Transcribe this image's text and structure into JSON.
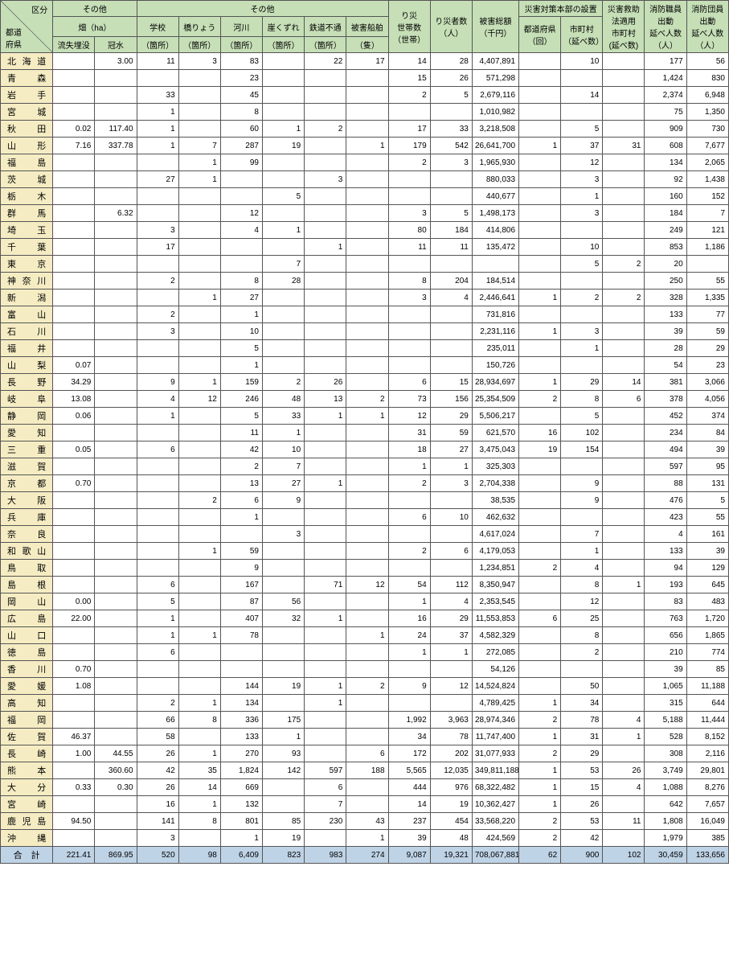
{
  "headers": {
    "corner_top": "区分",
    "corner_bottom": "都道\n府県",
    "group1": "その他",
    "group1_sub": "畑（ha）",
    "group1_cols": [
      "流失埋没",
      "冠水"
    ],
    "group2": "その他",
    "group2_cols": [
      "学校",
      "橋りょう",
      "河川",
      "崖くずれ",
      "鉄道不通",
      "被害船舶"
    ],
    "group2_unit": "（箇所）",
    "group2_unit_ship": "（隻）",
    "col_households": "り災\n世帯数\n（世帯）",
    "col_victims": "り災者数\n（人）",
    "col_damage": "被害総額\n（千円）",
    "group3": "災害対策本部の設置",
    "group3_cols": [
      "都道府県\n（回）",
      "市町村\n（延べ数）"
    ],
    "col_law": "災害救助\n法適用\n市町村\n(延べ数)",
    "col_staff": "消防職員\n出動\n延べ人数\n（人）",
    "col_corps": "消防団員\n出動\n延べ人数\n（人）"
  },
  "groups": [
    [
      {
        "p": "北海道",
        "v": [
          "",
          "3.00",
          "11",
          "3",
          "83",
          "",
          "22",
          "17",
          "14",
          "28",
          "4,407,891",
          "",
          "10",
          "",
          "177",
          "56"
        ]
      },
      {
        "p": "青森",
        "v": [
          "",
          "",
          "",
          "",
          "23",
          "",
          "",
          "",
          "15",
          "26",
          "571,298",
          "",
          "",
          "",
          "1,424",
          "830"
        ]
      },
      {
        "p": "岩手",
        "v": [
          "",
          "",
          "33",
          "",
          "45",
          "",
          "",
          "",
          "2",
          "5",
          "2,679,116",
          "",
          "14",
          "",
          "2,374",
          "6,948"
        ]
      },
      {
        "p": "宮城",
        "v": [
          "",
          "",
          "1",
          "",
          "8",
          "",
          "",
          "",
          "",
          "",
          "1,010,982",
          "",
          "",
          "",
          "75",
          "1,350"
        ]
      },
      {
        "p": "秋田",
        "v": [
          "0.02",
          "117.40",
          "1",
          "",
          "60",
          "1",
          "2",
          "",
          "17",
          "33",
          "3,218,508",
          "",
          "5",
          "",
          "909",
          "730"
        ]
      },
      {
        "p": "山形",
        "v": [
          "7.16",
          "337.78",
          "1",
          "7",
          "287",
          "19",
          "",
          "1",
          "179",
          "542",
          "26,641,700",
          "1",
          "37",
          "31",
          "608",
          "7,677"
        ]
      },
      {
        "p": "福島",
        "v": [
          "",
          "",
          "",
          "1",
          "99",
          "",
          "",
          "",
          "2",
          "3",
          "1,965,930",
          "",
          "12",
          "",
          "134",
          "2,065"
        ]
      }
    ],
    [
      {
        "p": "茨城",
        "v": [
          "",
          "",
          "27",
          "1",
          "",
          "",
          "3",
          "",
          "",
          "",
          "880,033",
          "",
          "3",
          "",
          "92",
          "1,438"
        ]
      },
      {
        "p": "栃木",
        "v": [
          "",
          "",
          "",
          "",
          "",
          "5",
          "",
          "",
          "",
          "",
          "440,677",
          "",
          "1",
          "",
          "160",
          "152"
        ]
      },
      {
        "p": "群馬",
        "v": [
          "",
          "6.32",
          "",
          "",
          "12",
          "",
          "",
          "",
          "3",
          "5",
          "1,498,173",
          "",
          "3",
          "",
          "184",
          "7"
        ]
      },
      {
        "p": "埼玉",
        "v": [
          "",
          "",
          "3",
          "",
          "4",
          "1",
          "",
          "",
          "80",
          "184",
          "414,806",
          "",
          "",
          "",
          "249",
          "121"
        ]
      },
      {
        "p": "千葉",
        "v": [
          "",
          "",
          "17",
          "",
          "",
          "",
          "1",
          "",
          "11",
          "11",
          "135,472",
          "",
          "10",
          "",
          "853",
          "1,186"
        ]
      },
      {
        "p": "東京",
        "v": [
          "",
          "",
          "",
          "",
          "",
          "7",
          "",
          "",
          "",
          "",
          "",
          "",
          "5",
          "2",
          "20",
          ""
        ]
      },
      {
        "p": "神奈川",
        "v": [
          "",
          "",
          "2",
          "",
          "8",
          "28",
          "",
          "",
          "8",
          "204",
          "184,514",
          "",
          "",
          "",
          "250",
          "55"
        ]
      }
    ],
    [
      {
        "p": "新潟",
        "v": [
          "",
          "",
          "",
          "1",
          "27",
          "",
          "",
          "",
          "3",
          "4",
          "2,446,641",
          "1",
          "2",
          "2",
          "328",
          "1,335"
        ]
      },
      {
        "p": "富山",
        "v": [
          "",
          "",
          "2",
          "",
          "1",
          "",
          "",
          "",
          "",
          "",
          "731,816",
          "",
          "",
          "",
          "133",
          "77"
        ]
      },
      {
        "p": "石川",
        "v": [
          "",
          "",
          "3",
          "",
          "10",
          "",
          "",
          "",
          "",
          "",
          "2,231,116",
          "1",
          "3",
          "",
          "39",
          "59"
        ]
      },
      {
        "p": "福井",
        "v": [
          "",
          "",
          "",
          "",
          "5",
          "",
          "",
          "",
          "",
          "",
          "235,011",
          "",
          "1",
          "",
          "28",
          "29"
        ]
      }
    ],
    [
      {
        "p": "山梨",
        "v": [
          "0.07",
          "",
          "",
          "",
          "1",
          "",
          "",
          "",
          "",
          "",
          "150,726",
          "",
          "",
          "",
          "54",
          "23"
        ]
      },
      {
        "p": "長野",
        "v": [
          "34.29",
          "",
          "9",
          "1",
          "159",
          "2",
          "26",
          "",
          "6",
          "15",
          "28,934,697",
          "1",
          "29",
          "14",
          "381",
          "3,066"
        ]
      },
      {
        "p": "岐阜",
        "v": [
          "13.08",
          "",
          "4",
          "12",
          "246",
          "48",
          "13",
          "2",
          "73",
          "156",
          "25,354,509",
          "2",
          "8",
          "6",
          "378",
          "4,056"
        ]
      },
      {
        "p": "静岡",
        "v": [
          "0.06",
          "",
          "1",
          "",
          "5",
          "33",
          "1",
          "1",
          "12",
          "29",
          "5,506,217",
          "",
          "5",
          "",
          "452",
          "374"
        ]
      },
      {
        "p": "愛知",
        "v": [
          "",
          "",
          "",
          "",
          "11",
          "1",
          "",
          "",
          "31",
          "59",
          "621,570",
          "16",
          "102",
          "",
          "234",
          "84"
        ]
      },
      {
        "p": "三重",
        "v": [
          "0.05",
          "",
          "6",
          "",
          "42",
          "10",
          "",
          "",
          "18",
          "27",
          "3,475,043",
          "19",
          "154",
          "",
          "494",
          "39"
        ]
      }
    ],
    [
      {
        "p": "滋賀",
        "v": [
          "",
          "",
          "",
          "",
          "2",
          "7",
          "",
          "",
          "1",
          "1",
          "325,303",
          "",
          "",
          "",
          "597",
          "95"
        ]
      },
      {
        "p": "京都",
        "v": [
          "0.70",
          "",
          "",
          "",
          "13",
          "27",
          "1",
          "",
          "2",
          "3",
          "2,704,338",
          "",
          "9",
          "",
          "88",
          "131"
        ]
      },
      {
        "p": "大阪",
        "v": [
          "",
          "",
          "",
          "2",
          "6",
          "9",
          "",
          "",
          "",
          "",
          "38,535",
          "",
          "9",
          "",
          "476",
          "5"
        ]
      },
      {
        "p": "兵庫",
        "v": [
          "",
          "",
          "",
          "",
          "1",
          "",
          "",
          "",
          "6",
          "10",
          "462,632",
          "",
          "",
          "",
          "423",
          "55"
        ]
      },
      {
        "p": "奈良",
        "v": [
          "",
          "",
          "",
          "",
          "",
          "3",
          "",
          "",
          "",
          "",
          "4,617,024",
          "",
          "7",
          "",
          "4",
          "161"
        ]
      },
      {
        "p": "和歌山",
        "v": [
          "",
          "",
          "",
          "1",
          "59",
          "",
          "",
          "",
          "2",
          "6",
          "4,179,053",
          "",
          "1",
          "",
          "133",
          "39"
        ]
      }
    ],
    [
      {
        "p": "鳥取",
        "v": [
          "",
          "",
          "",
          "",
          "9",
          "",
          "",
          "",
          "",
          "",
          "1,234,851",
          "2",
          "4",
          "",
          "94",
          "129"
        ]
      },
      {
        "p": "島根",
        "v": [
          "",
          "",
          "6",
          "",
          "167",
          "",
          "71",
          "12",
          "54",
          "112",
          "8,350,947",
          "",
          "8",
          "1",
          "193",
          "645"
        ]
      },
      {
        "p": "岡山",
        "v": [
          "0.00",
          "",
          "5",
          "",
          "87",
          "56",
          "",
          "",
          "1",
          "4",
          "2,353,545",
          "",
          "12",
          "",
          "83",
          "483"
        ]
      },
      {
        "p": "広島",
        "v": [
          "22.00",
          "",
          "1",
          "",
          "407",
          "32",
          "1",
          "",
          "16",
          "29",
          "11,553,853",
          "6",
          "25",
          "",
          "763",
          "1,720"
        ]
      },
      {
        "p": "山口",
        "v": [
          "",
          "",
          "1",
          "1",
          "78",
          "",
          "",
          "1",
          "24",
          "37",
          "4,582,329",
          "",
          "8",
          "",
          "656",
          "1,865"
        ]
      }
    ],
    [
      {
        "p": "徳島",
        "v": [
          "",
          "",
          "6",
          "",
          "",
          "",
          "",
          "",
          "1",
          "1",
          "272,085",
          "",
          "2",
          "",
          "210",
          "774"
        ]
      },
      {
        "p": "香川",
        "v": [
          "0.70",
          "",
          "",
          "",
          "",
          "",
          "",
          "",
          "",
          "",
          "54,126",
          "",
          "",
          "",
          "39",
          "85"
        ]
      },
      {
        "p": "愛媛",
        "v": [
          "1.08",
          "",
          "",
          "",
          "144",
          "19",
          "1",
          "2",
          "9",
          "12",
          "14,524,824",
          "",
          "50",
          "",
          "1,065",
          "11,188"
        ]
      },
      {
        "p": "高知",
        "v": [
          "",
          "",
          "2",
          "1",
          "134",
          "",
          "1",
          "",
          "",
          "",
          "4,789,425",
          "1",
          "34",
          "",
          "315",
          "644"
        ]
      }
    ],
    [
      {
        "p": "福岡",
        "v": [
          "",
          "",
          "66",
          "8",
          "336",
          "175",
          "",
          "",
          "1,992",
          "3,963",
          "28,974,346",
          "2",
          "78",
          "4",
          "5,188",
          "11,444"
        ]
      },
      {
        "p": "佐賀",
        "v": [
          "46.37",
          "",
          "58",
          "",
          "133",
          "1",
          "",
          "",
          "34",
          "78",
          "11,747,400",
          "1",
          "31",
          "1",
          "528",
          "8,152"
        ]
      },
      {
        "p": "長崎",
        "v": [
          "1.00",
          "44.55",
          "26",
          "1",
          "270",
          "93",
          "",
          "6",
          "172",
          "202",
          "31,077,933",
          "2",
          "29",
          "",
          "308",
          "2,116"
        ]
      },
      {
        "p": "熊本",
        "v": [
          "",
          "360.60",
          "42",
          "35",
          "1,824",
          "142",
          "597",
          "188",
          "5,565",
          "12,035",
          "349,811,188",
          "1",
          "53",
          "26",
          "3,749",
          "29,801"
        ]
      },
      {
        "p": "大分",
        "v": [
          "0.33",
          "0.30",
          "26",
          "14",
          "669",
          "",
          "6",
          "",
          "444",
          "976",
          "68,322,482",
          "1",
          "15",
          "4",
          "1,088",
          "8,276"
        ]
      },
      {
        "p": "宮崎",
        "v": [
          "",
          "",
          "16",
          "1",
          "132",
          "",
          "7",
          "",
          "14",
          "19",
          "10,362,427",
          "1",
          "26",
          "",
          "642",
          "7,657"
        ]
      },
      {
        "p": "鹿児島",
        "v": [
          "94.50",
          "",
          "141",
          "8",
          "801",
          "85",
          "230",
          "43",
          "237",
          "454",
          "33,568,220",
          "2",
          "53",
          "11",
          "1,808",
          "16,049"
        ]
      },
      {
        "p": "沖縄",
        "v": [
          "",
          "",
          "3",
          "",
          "1",
          "19",
          "",
          "1",
          "39",
          "48",
          "424,569",
          "2",
          "42",
          "",
          "1,979",
          "385"
        ]
      }
    ]
  ],
  "total": {
    "p": "合　計",
    "v": [
      "221.41",
      "869.95",
      "520",
      "98",
      "6,409",
      "823",
      "983",
      "274",
      "9,087",
      "19,321",
      "708,067,881",
      "62",
      "900",
      "102",
      "30,459",
      "133,656"
    ]
  }
}
